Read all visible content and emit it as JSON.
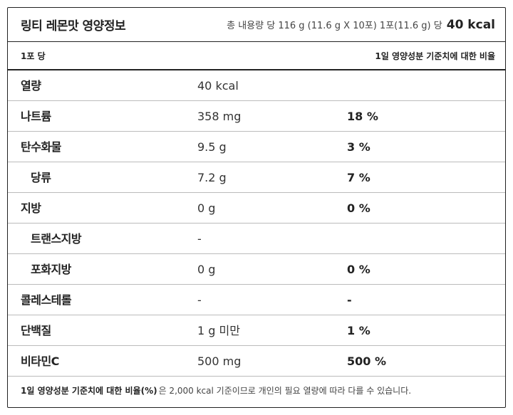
{
  "header": {
    "title": "링티 레몬맛 영양정보",
    "serving_info": "총 내용량 당 116 g (11.6 g X 10포) 1포(11.6 g) 당",
    "calories": "40 kcal"
  },
  "subheader": {
    "per_serving": "1포 당",
    "daily_value_label": "1일 영양성분 기준치에 대한 비율"
  },
  "rows": [
    {
      "name": "열량",
      "amount": "40 kcal",
      "percent": ""
    },
    {
      "name": "나트륨",
      "amount": "358 mg",
      "percent": "18 %"
    },
    {
      "name": "탄수화물",
      "amount": "9.5 g",
      "percent": "3 %"
    },
    {
      "name": "당류",
      "amount": "7.2 g",
      "percent": "7 %"
    },
    {
      "name": "지방",
      "amount": "0 g",
      "percent": "0 %"
    },
    {
      "name": "트랜스지방",
      "amount": "-",
      "percent": ""
    },
    {
      "name": "포화지방",
      "amount": "0 g",
      "percent": "0 %"
    },
    {
      "name": "콜레스테롤",
      "amount": "-",
      "percent": "-"
    },
    {
      "name": "단백질",
      "amount": "1 g 미만",
      "percent": "1 %"
    },
    {
      "name": "비타민C",
      "amount": "500 mg",
      "percent": "500 %"
    }
  ],
  "footer": {
    "bold": "1일 영양성분 기준치에 대한 비율(%)",
    "text": "은 2,000 kcal 기준이므로 개인의 필요 열량에 따라 다를 수 있습니다."
  }
}
